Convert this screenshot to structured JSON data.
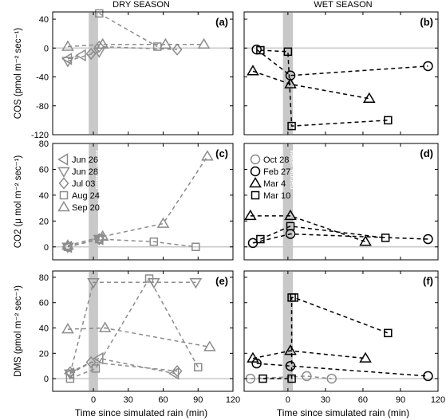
{
  "figure": {
    "column_titles": [
      "DRY SEASON",
      "WET SEASON"
    ],
    "x_label": "Time since simulated rain (min)",
    "band_label": "water added",
    "colors": {
      "dry": "#8c8c8c",
      "wet": "#000000",
      "band": "#c8c8c8",
      "zero": "#c8c8c8"
    }
  },
  "chart_data": [
    {
      "type": "scatter",
      "panel": "(a)",
      "season": "dry",
      "ylabel": "COS (pmol m⁻² sec⁻¹)",
      "xlim": [
        -35,
        120
      ],
      "ylim": [
        -120,
        50
      ],
      "xticks": [
        0,
        30,
        60,
        90,
        120
      ],
      "yticks": [
        -120,
        -80,
        -40,
        0,
        40
      ],
      "series": [
        {
          "marker": "triangle-left",
          "points": [
            [
              -22,
              -15
            ],
            [
              -10,
              -10
            ]
          ]
        },
        {
          "marker": "triangle-down",
          "points": [
            [
              -22,
              -18
            ],
            [
              5,
              -5
            ]
          ]
        },
        {
          "marker": "diamond",
          "points": [
            [
              -2,
              -8
            ],
            [
              5,
              2
            ],
            [
              72,
              -2
            ]
          ]
        },
        {
          "marker": "square",
          "points": [
            [
              5,
              48
            ],
            [
              55,
              2
            ]
          ]
        },
        {
          "marker": "triangle-up",
          "points": [
            [
              -22,
              2
            ],
            [
              8,
              5
            ],
            [
              62,
              5
            ],
            [
              95,
              5
            ]
          ]
        }
      ]
    },
    {
      "type": "scatter",
      "panel": "(b)",
      "season": "wet",
      "ylabel": "",
      "xlim": [
        -35,
        120
      ],
      "ylim": [
        -120,
        50
      ],
      "xticks": [
        0,
        30,
        60,
        90,
        120
      ],
      "yticks": [
        -120,
        -80,
        -40,
        0,
        40
      ],
      "series": [
        {
          "marker": "circle",
          "points": [
            [
              -25,
              -2
            ],
            [
              2,
              -38
            ],
            [
              112,
              -25
            ]
          ]
        },
        {
          "marker": "triangle-up",
          "points": [
            [
              -28,
              -32
            ],
            [
              2,
              -50
            ],
            [
              65,
              -70
            ]
          ]
        },
        {
          "marker": "square",
          "points": [
            [
              -22,
              -3
            ],
            [
              0,
              -5
            ],
            [
              3,
              -108
            ],
            [
              80,
              -100
            ]
          ]
        }
      ]
    },
    {
      "type": "scatter",
      "panel": "(c)",
      "season": "dry",
      "ylabel": "CO2 (μ mol m⁻² sec⁻¹)",
      "xlim": [
        -35,
        120
      ],
      "ylim": [
        -10,
        80
      ],
      "xticks": [
        0,
        30,
        60,
        90,
        120
      ],
      "yticks": [
        0,
        20,
        40,
        60,
        80
      ],
      "legend": {
        "placement": "top-left",
        "entries": [
          {
            "label": "Jun 26",
            "marker": "triangle-left"
          },
          {
            "label": "Jun 28",
            "marker": "triangle-down"
          },
          {
            "label": "Jul 03",
            "marker": "diamond"
          },
          {
            "label": "Aug 24",
            "marker": "square"
          },
          {
            "label": "Sep 20",
            "marker": "triangle-up"
          }
        ]
      },
      "series": [
        {
          "marker": "triangle-left",
          "points": [
            [
              -22,
              0
            ],
            [
              5,
              6
            ]
          ]
        },
        {
          "marker": "triangle-down",
          "points": [
            [
              -22,
              0
            ],
            [
              5,
              6
            ]
          ]
        },
        {
          "marker": "diamond",
          "points": [
            [
              -22,
              0
            ],
            [
              5,
              6
            ]
          ]
        },
        {
          "marker": "square",
          "points": [
            [
              -22,
              0
            ],
            [
              5,
              6
            ],
            [
              52,
              4
            ],
            [
              88,
              0
            ]
          ]
        },
        {
          "marker": "triangle-up",
          "points": [
            [
              -22,
              1
            ],
            [
              8,
              8
            ],
            [
              60,
              18
            ],
            [
              98,
              70
            ]
          ]
        }
      ]
    },
    {
      "type": "scatter",
      "panel": "(d)",
      "season": "wet",
      "ylabel": "",
      "xlim": [
        -35,
        120
      ],
      "ylim": [
        -10,
        80
      ],
      "xticks": [
        0,
        30,
        60,
        90,
        120
      ],
      "yticks": [
        0,
        20,
        40,
        60,
        80
      ],
      "legend": {
        "placement": "top-left",
        "entries": [
          {
            "label": "Oct 28",
            "marker": "circle-gray"
          },
          {
            "label": "Feb 27",
            "marker": "circle"
          },
          {
            "label": "Mar 4",
            "marker": "triangle-up"
          },
          {
            "label": "Mar 10",
            "marker": "square"
          }
        ]
      },
      "series": [
        {
          "marker": "circle",
          "points": [
            [
              -28,
              3
            ],
            [
              2,
              10
            ],
            [
              112,
              6
            ]
          ]
        },
        {
          "marker": "triangle-up",
          "points": [
            [
              -30,
              24
            ],
            [
              2,
              24
            ],
            [
              62,
              4
            ]
          ]
        },
        {
          "marker": "square",
          "points": [
            [
              -22,
              6
            ],
            [
              2,
              16
            ],
            [
              78,
              7
            ]
          ]
        }
      ]
    },
    {
      "type": "scatter",
      "panel": "(e)",
      "season": "dry",
      "ylabel": "DMS (pmol m⁻² sec⁻¹)",
      "xlim": [
        -35,
        120
      ],
      "ylim": [
        -10,
        85
      ],
      "xticks": [
        0,
        30,
        60,
        90,
        120
      ],
      "yticks": [
        0,
        20,
        40,
        60,
        80
      ],
      "series": [
        {
          "marker": "triangle-left",
          "points": [
            [
              -20,
              4
            ],
            [
              5,
              16
            ],
            [
              70,
              4
            ]
          ]
        },
        {
          "marker": "triangle-down",
          "points": [
            [
              -20,
              4
            ],
            [
              0,
              76
            ],
            [
              52,
              76
            ],
            [
              88,
              76
            ]
          ]
        },
        {
          "marker": "diamond",
          "points": [
            [
              -20,
              5
            ],
            [
              -2,
              13
            ],
            [
              72,
              6
            ]
          ]
        },
        {
          "marker": "square",
          "points": [
            [
              -20,
              0
            ],
            [
              2,
              8
            ],
            [
              48,
              79
            ],
            [
              90,
              9
            ]
          ]
        },
        {
          "marker": "triangle-up",
          "points": [
            [
              -22,
              39
            ],
            [
              10,
              40
            ],
            [
              100,
              25
            ]
          ]
        }
      ]
    },
    {
      "type": "scatter",
      "panel": "(f)",
      "season": "wet",
      "ylabel": "",
      "xlim": [
        -35,
        120
      ],
      "ylim": [
        -10,
        85
      ],
      "xticks": [
        0,
        30,
        60,
        90,
        120
      ],
      "yticks": [
        0,
        20,
        40,
        60,
        80
      ],
      "series": [
        {
          "marker": "circle-gray",
          "points": [
            [
              -30,
              0
            ],
            [
              15,
              2
            ],
            [
              35,
              0
            ]
          ]
        },
        {
          "marker": "circle",
          "points": [
            [
              -25,
              12
            ],
            [
              2,
              10
            ],
            [
              112,
              2
            ]
          ]
        },
        {
          "marker": "triangle-up",
          "points": [
            [
              -28,
              16
            ],
            [
              2,
              22
            ],
            [
              62,
              16
            ]
          ]
        },
        {
          "marker": "square",
          "points": [
            [
              -20,
              0
            ],
            [
              3,
              0
            ],
            [
              3,
              64
            ],
            [
              5,
              64
            ],
            [
              80,
              36
            ]
          ]
        }
      ]
    }
  ]
}
